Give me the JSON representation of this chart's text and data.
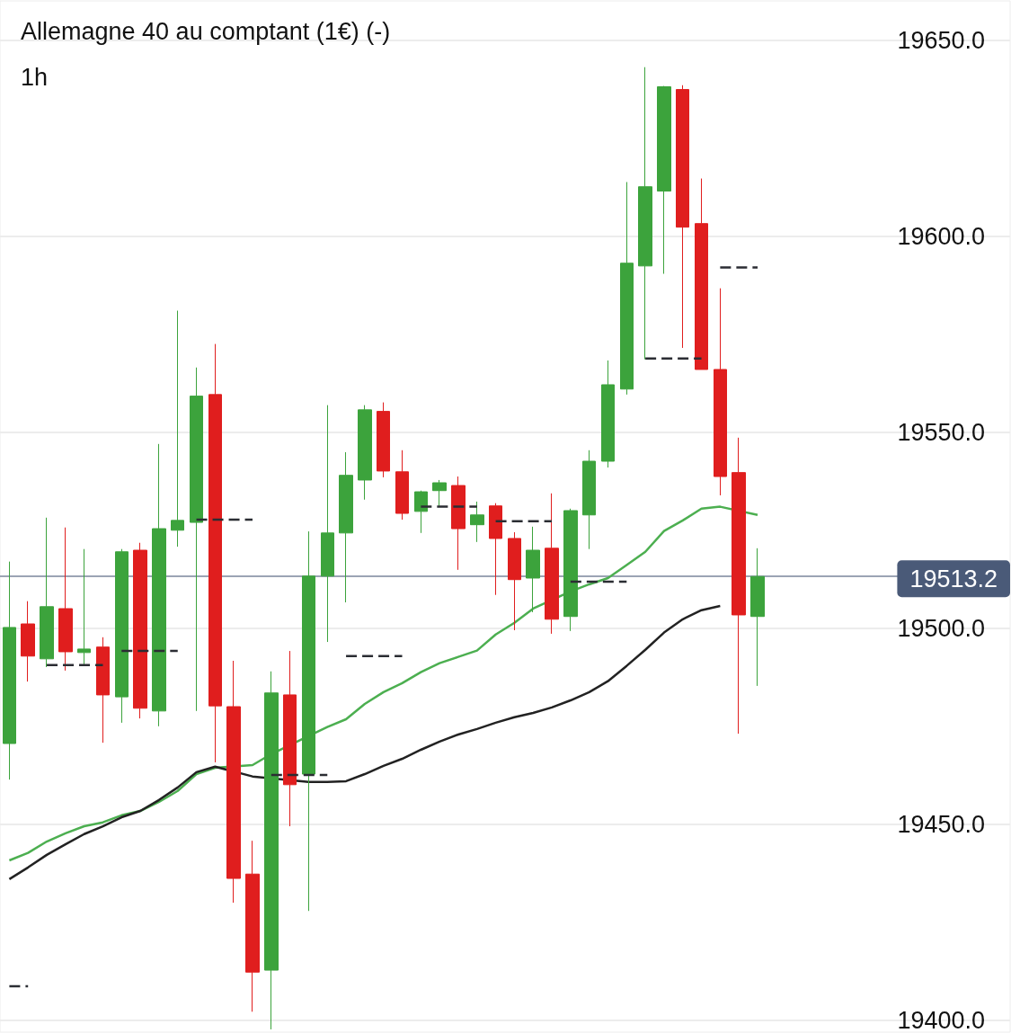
{
  "chart_data": {
    "type": "candlestick",
    "title": "Allemagne 40 au comptant (1€) (-)",
    "subtitle": "1h",
    "categories": [
      null,
      null,
      null,
      null,
      null,
      null,
      null,
      null,
      null,
      null,
      null,
      null,
      null,
      null,
      null,
      null,
      null,
      null,
      null,
      null,
      null,
      null,
      null,
      null,
      null,
      null,
      null,
      null,
      null,
      null,
      null,
      null,
      null,
      null,
      null,
      null,
      null,
      null,
      null,
      null,
      null
    ],
    "ohlc": [
      [
        19470.6,
        19517,
        19461.4,
        19500.2
      ],
      [
        19501.1,
        19506.9,
        19486.4,
        19492.9
      ],
      [
        19492.2,
        19528.2,
        19490.1,
        19505.5
      ],
      [
        19505,
        19525.7,
        19489.2,
        19494
      ],
      [
        19493.8,
        19520.2,
        19490.8,
        19494.7
      ],
      [
        19495.2,
        19497.7,
        19470.8,
        19483
      ],
      [
        19482.5,
        19520.2,
        19475.9,
        19519.5
      ],
      [
        19519.9,
        19521.8,
        19477,
        19479.6
      ],
      [
        19478.9,
        19547,
        19475,
        19525.4
      ],
      [
        19525,
        19581,
        19520.8,
        19527.5
      ],
      [
        19527,
        19566.5,
        19478.9,
        19559.2
      ],
      [
        19559.6,
        19572.5,
        19465.8,
        19480.2
      ],
      [
        19480,
        19491.7,
        19430,
        19436.2
      ],
      [
        19437.3,
        19445.8,
        19402.2,
        19412.3
      ],
      [
        19412.8,
        19489,
        19397.7,
        19483.5
      ],
      [
        19483,
        19494.2,
        19449.5,
        19460.1
      ],
      [
        19462.8,
        19524.7,
        19427.9,
        19513.3
      ],
      [
        19513.3,
        19556.9,
        19496.5,
        19524.3
      ],
      [
        19524.3,
        19544.9,
        19506.6,
        19539
      ],
      [
        19537.8,
        19556.9,
        19532.8,
        19555.7
      ],
      [
        19555.3,
        19557.6,
        19538.5,
        19540.1
      ],
      [
        19539.9,
        19545.4,
        19527.7,
        19529.3
      ],
      [
        19529.8,
        19535.1,
        19524.3,
        19534.8
      ],
      [
        19535.1,
        19537.8,
        19531.2,
        19537.1
      ],
      [
        19536.4,
        19538.7,
        19514.9,
        19525.4
      ],
      [
        19526.4,
        19532.3,
        19522,
        19528.9
      ],
      [
        19531.2,
        19531.9,
        19508.5,
        19522.9
      ],
      [
        19522.9,
        19524.5,
        19499.5,
        19512.4
      ],
      [
        19512.8,
        19525.9,
        19504.1,
        19519.9
      ],
      [
        19520.4,
        19534.4,
        19498.6,
        19502.3
      ],
      [
        19503,
        19530.5,
        19499.3,
        19530
      ],
      [
        19528.9,
        19545.4,
        19520.2,
        19542.6
      ],
      [
        19542.6,
        19568.3,
        19541,
        19562.1
      ],
      [
        19561,
        19613.8,
        19559.6,
        19593.1
      ],
      [
        19592.4,
        19643.1,
        19568.6,
        19612.6
      ],
      [
        19611.5,
        19638.3,
        19590.4,
        19638.1
      ],
      [
        19637.4,
        19638.5,
        19571.5,
        19602.3
      ],
      [
        19603.2,
        19614.7,
        19566,
        19566
      ],
      [
        19566,
        19586.7,
        19533.9,
        19538.7
      ],
      [
        19539.7,
        19548.6,
        19473.1,
        19503.4
      ],
      [
        19503,
        19520.4,
        19485.3,
        19513.2
      ]
    ],
    "colors": [
      "#3ca33c",
      "#e01e1e",
      "#3ca33c",
      "#e01e1e",
      "#3ca33c",
      "#e01e1e",
      "#3ca33c",
      "#e01e1e",
      "#3ca33c",
      "#3ca33c",
      "#3ca33c",
      "#e01e1e",
      "#e01e1e",
      "#e01e1e",
      "#3ca33c",
      "#e01e1e",
      "#3ca33c",
      "#3ca33c",
      "#3ca33c",
      "#3ca33c",
      "#e01e1e",
      "#e01e1e",
      "#3ca33c",
      "#3ca33c",
      "#e01e1e",
      "#3ca33c",
      "#e01e1e",
      "#e01e1e",
      "#3ca33c",
      "#e01e1e",
      "#3ca33c",
      "#3ca33c",
      "#3ca33c",
      "#3ca33c",
      "#3ca33c",
      "#3ca33c",
      "#e01e1e",
      "#e01e1e",
      "#e01e1e",
      "#e01e1e",
      "#3ca33c"
    ],
    "series": [
      {
        "type": "line",
        "color": "#4caf50",
        "values": [
          19440.8,
          19442.7,
          19445.6,
          19447.7,
          19449.5,
          19450.5,
          19452.3,
          19453.4,
          19455.7,
          19458.5,
          19462.8,
          19464.4,
          null,
          19465.1,
          19467.9,
          null,
          19472.5,
          19474.8,
          19476.8,
          19480.7,
          19483.7,
          19486,
          19488.8,
          19491.1,
          19492.7,
          19494.3,
          19498.4,
          19501.4,
          19505,
          null,
          19509.4,
          19511.2,
          19512.8,
          19516.1,
          19519.5,
          19524.8,
          19527.5,
          19530.5,
          19531,
          null,
          19528.9
        ]
      },
      {
        "type": "line",
        "color": "#222222",
        "values": [
          19436,
          19439,
          19442.2,
          19444.9,
          19447.5,
          19449.5,
          19451.8,
          19453.4,
          19456.2,
          19459.4,
          19463.3,
          19464.7,
          null,
          19462.2,
          null,
          null,
          19460.8,
          19460.8,
          19461,
          19462.8,
          19464.9,
          19466.7,
          19469,
          19471.1,
          19472.9,
          19474.3,
          19475.9,
          19477.3,
          19478.4,
          19479.8,
          19481.6,
          19483.7,
          19486.5,
          19490.4,
          19494.5,
          19498.9,
          19502.3,
          19504.6,
          19505.7,
          null,
          null
        ]
      },
      {
        "type": "step",
        "color": "#2b2d33",
        "line_style": "dashed",
        "values": [
          19408.7,
          19408.7,
          19490.6,
          19490.6,
          19490.6,
          19490.6,
          19494.2,
          19494.2,
          19494.2,
          19494.2,
          19527.7,
          19527.7,
          19527.7,
          19527.7,
          19462.6,
          19462.6,
          19462.6,
          19462.6,
          19492.9,
          19492.9,
          19492.9,
          19492.9,
          19531,
          19531,
          19531,
          19531,
          19527.3,
          19527.3,
          19527.3,
          19527.3,
          19511.9,
          19511.9,
          19511.9,
          19511.9,
          19568.8,
          19568.8,
          19568.8,
          19568.8,
          19592,
          19592,
          19592
        ]
      }
    ],
    "marker": "none",
    "ylim": [
      19397,
      19660
    ],
    "yticks": [
      {
        "value": 19400,
        "label": "19400.0"
      },
      {
        "value": 19450,
        "label": "19450.0"
      },
      {
        "value": 19500,
        "label": "19500.0"
      },
      {
        "value": 19550,
        "label": "19550.0"
      },
      {
        "value": 19600,
        "label": "19600.0"
      },
      {
        "value": 19650,
        "label": "19650.0"
      }
    ],
    "ref_lines": [
      {
        "axis": "y",
        "value": 19513.2,
        "label": "19513.2",
        "color": "#9ba4b4"
      }
    ],
    "grid": "y",
    "tick_labels": "y"
  }
}
